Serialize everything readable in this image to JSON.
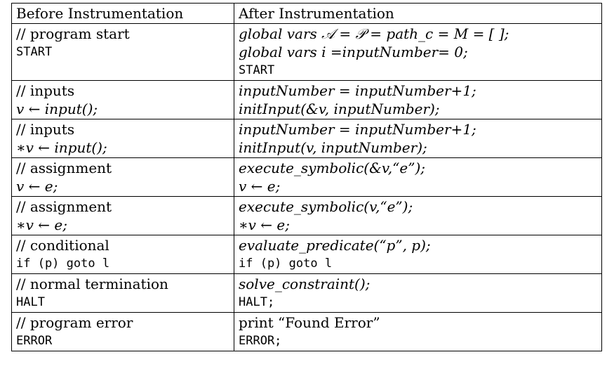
{
  "header": {
    "before": "Before Instrumentation",
    "after": "After Instrumentation"
  },
  "rows": [
    {
      "before": [
        "// program start",
        "START"
      ],
      "after": [
        "global vars 𝒜 = 𝒫 = path_c = M = [ ];",
        "global vars i =inputNumber= 0;",
        "START"
      ]
    },
    {
      "before": [
        "// inputs",
        "v ← input();"
      ],
      "after": [
        "inputNumber = inputNumber+1;",
        "initInput(&v, inputNumber);"
      ]
    },
    {
      "before": [
        "// inputs",
        "∗v ← input();"
      ],
      "after": [
        "inputNumber = inputNumber+1;",
        "initInput(v, inputNumber);"
      ]
    },
    {
      "before": [
        "// assignment",
        "v ← e;"
      ],
      "after": [
        "execute_symbolic(&v,“e”);",
        "v ← e;"
      ]
    },
    {
      "before": [
        "// assignment",
        "∗v ← e;"
      ],
      "after": [
        "execute_symbolic(v,“e”);",
        "∗v ← e;"
      ]
    },
    {
      "before": [
        "// conditional",
        "if (p) goto l"
      ],
      "after": [
        "evaluate_predicate(“p”, p);",
        "if (p) goto l"
      ]
    },
    {
      "before": [
        "// normal termination",
        "HALT"
      ],
      "after": [
        "solve_constraint();",
        "HALT;"
      ]
    },
    {
      "before": [
        "// program error",
        "ERROR"
      ],
      "after": [
        "print “Found Error”",
        "ERROR;"
      ]
    }
  ]
}
